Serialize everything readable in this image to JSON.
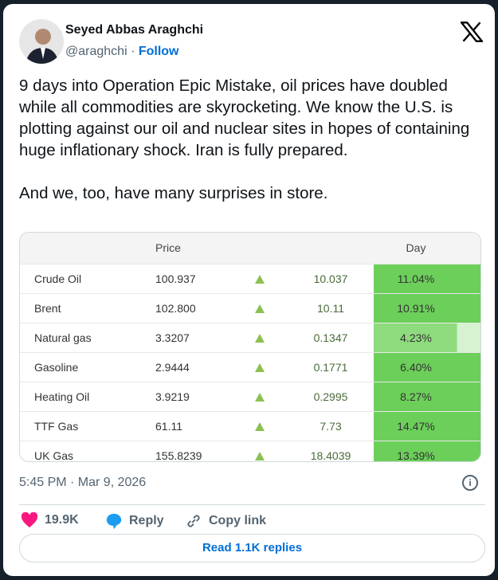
{
  "author": {
    "name": "Seyed Abbas Araghchi",
    "handle": "@araghchi",
    "separator": " · ",
    "follow": "Follow"
  },
  "tweet_text": "9 days into Operation Epic Mistake, oil prices have doubled while all commodities are skyrocketing. We know the U.S. is plotting against our oil and nuclear sites in hopes of containing huge inflationary shock. Iran is fully prepared.\n\nAnd we, too, have many surprises in store.",
  "table": {
    "headers": {
      "price": "Price",
      "day": "Day"
    },
    "rows": [
      {
        "name": "Crude Oil",
        "price": "100.937",
        "change": "10.037",
        "day": "11.04%",
        "fill": 1.0
      },
      {
        "name": "Brent",
        "price": "102.800",
        "change": "10.11",
        "day": "10.91%",
        "fill": 1.0
      },
      {
        "name": "Natural gas",
        "price": "3.3207",
        "change": "0.1347",
        "day": "4.23%",
        "fill": 0.77
      },
      {
        "name": "Gasoline",
        "price": "2.9444",
        "change": "0.1771",
        "day": "6.40%",
        "fill": 1.0
      },
      {
        "name": "Heating Oil",
        "price": "3.9219",
        "change": "0.2995",
        "day": "8.27%",
        "fill": 1.0
      },
      {
        "name": "TTF Gas",
        "price": "61.11",
        "change": "7.73",
        "day": "14.47%",
        "fill": 1.0
      },
      {
        "name": "UK Gas",
        "price": "155.8239",
        "change": "18.4039",
        "day": "13.39%",
        "fill": 1.0
      }
    ]
  },
  "timestamp": "5:45 PM · Mar 9, 2026",
  "actions": {
    "likes": "19.9K",
    "reply": "Reply",
    "copy": "Copy link"
  },
  "read_replies": "Read 1.1K replies",
  "colors": {
    "like": "#f91880",
    "reply": "#1d9bf0",
    "link": "#006fd6",
    "day_cell": "#6ccf5a",
    "day_cell_light": "#8edb7d"
  }
}
